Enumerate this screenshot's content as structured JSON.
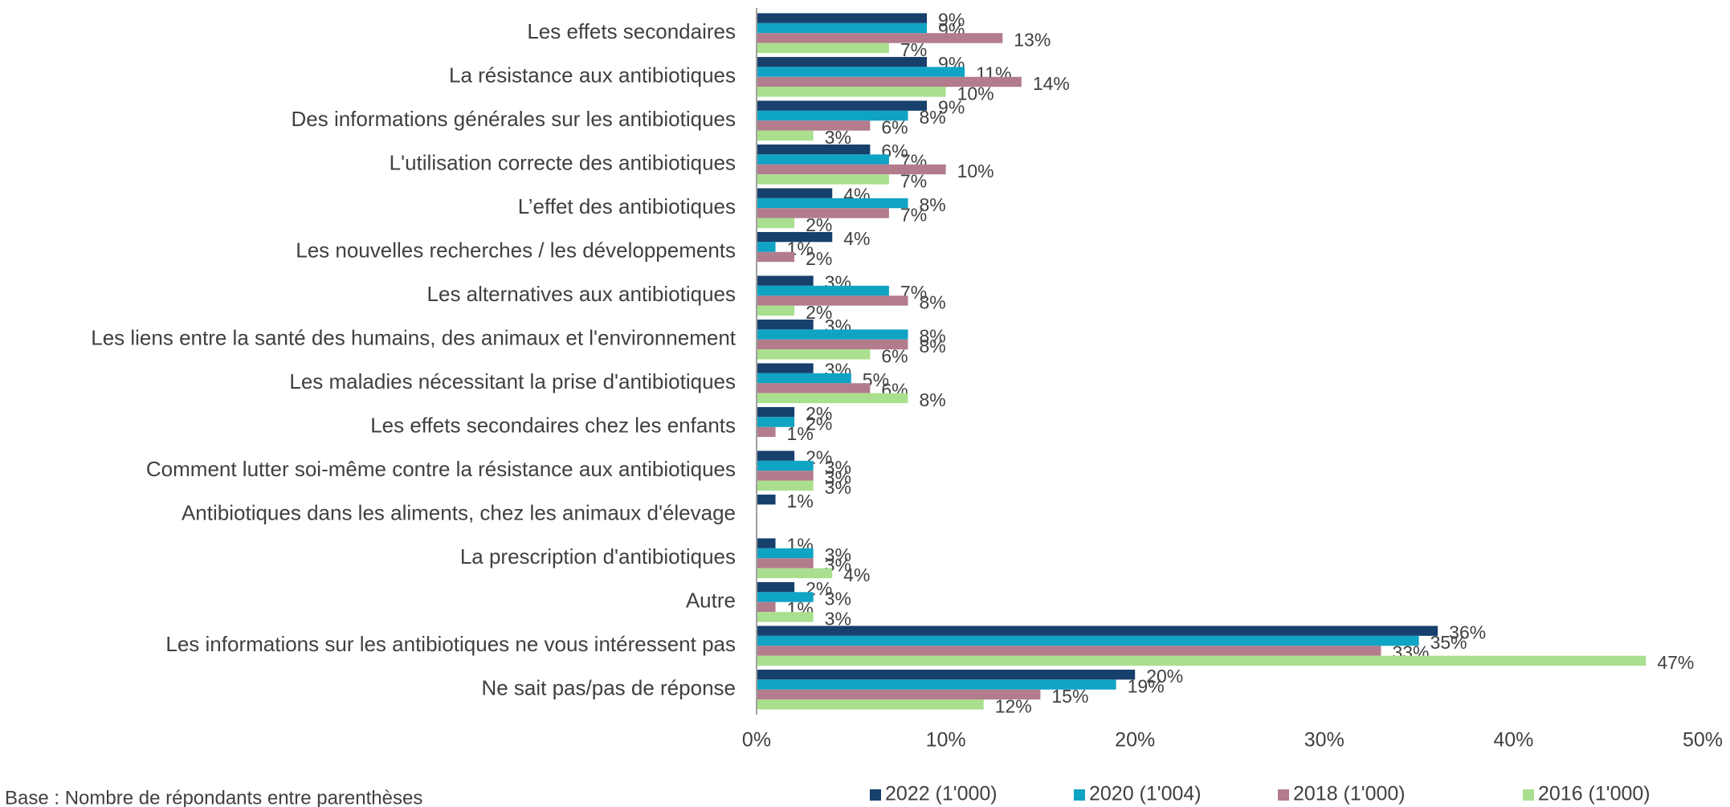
{
  "chart_data": {
    "type": "bar",
    "orientation": "horizontal",
    "categories": [
      "Les effets secondaires",
      "La résistance aux antibiotiques",
      "Des informations générales sur les antibiotiques",
      "L'utilisation correcte des antibiotiques",
      "L’effet des antibiotiques",
      "Les nouvelles recherches / les développements",
      "Les alternatives aux antibiotiques",
      "Les liens entre la santé des humains, des animaux et l'environnement",
      "Les maladies nécessitant la prise d'antibiotiques",
      "Les effets secondaires chez les enfants",
      "Comment lutter soi-même contre la résistance aux antibiotiques",
      "Antibiotiques dans les aliments, chez les animaux d'élevage",
      "La prescription d'antibiotiques",
      "Autre",
      "Les informations sur les antibiotiques ne vous intéressent pas",
      "Ne sait pas/pas de réponse"
    ],
    "series": [
      {
        "name": "2022 (1'000)",
        "color": "#17406d",
        "values": [
          9,
          9,
          9,
          6,
          4,
          4,
          3,
          3,
          3,
          2,
          2,
          1,
          1,
          2,
          36,
          20
        ],
        "value_labels": [
          "9%",
          "9%",
          "9%",
          "6%",
          "4%",
          "4%",
          "3%",
          "3%",
          "3%",
          "2%",
          "2%",
          "1%",
          "1%",
          "2%",
          "36%",
          "20%"
        ]
      },
      {
        "name": "2020 (1'004)",
        "color": "#0fa3c4",
        "values": [
          9,
          11,
          8,
          7,
          8,
          1,
          7,
          8,
          5,
          2,
          3,
          null,
          3,
          3,
          35,
          19
        ],
        "value_labels": [
          "9%",
          "11%",
          "8%",
          "7%",
          "8%",
          "1%",
          "7%",
          "8%",
          "5%",
          "2%",
          "3%",
          null,
          "3%",
          "3%",
          "35%",
          "19%"
        ]
      },
      {
        "name": "2018 (1'000)",
        "color": "#b27c8c",
        "values": [
          13,
          14,
          6,
          10,
          7,
          2,
          8,
          8,
          6,
          1,
          3,
          null,
          3,
          1,
          33,
          15
        ],
        "value_labels": [
          "13%",
          "14%",
          "6%",
          "10%",
          "7%",
          "2%",
          "8%",
          "8%",
          "6%",
          "1%",
          "3%",
          null,
          "3%",
          "1%",
          "33%",
          "15%"
        ]
      },
      {
        "name": "2016 (1'000)",
        "color": "#a9df8e",
        "values": [
          7,
          10,
          3,
          7,
          2,
          null,
          2,
          6,
          8,
          null,
          3,
          null,
          4,
          3,
          47,
          12
        ],
        "value_labels": [
          "7%",
          "10%",
          "3%",
          "7%",
          "2%",
          null,
          "2%",
          "6%",
          "8%",
          null,
          "3%",
          null,
          "4%",
          "3%",
          "47%",
          "12%"
        ]
      }
    ],
    "xlim": [
      0,
      50
    ],
    "xticks": [
      {
        "value": 0,
        "label": "0%"
      },
      {
        "value": 10,
        "label": "10%"
      },
      {
        "value": 20,
        "label": "20%"
      },
      {
        "value": 30,
        "label": "30%"
      },
      {
        "value": 40,
        "label": "40%"
      },
      {
        "value": 50,
        "label": "50%"
      }
    ],
    "legend": "bottom",
    "note": "Base : Nombre de répondants entre parenthèses"
  }
}
